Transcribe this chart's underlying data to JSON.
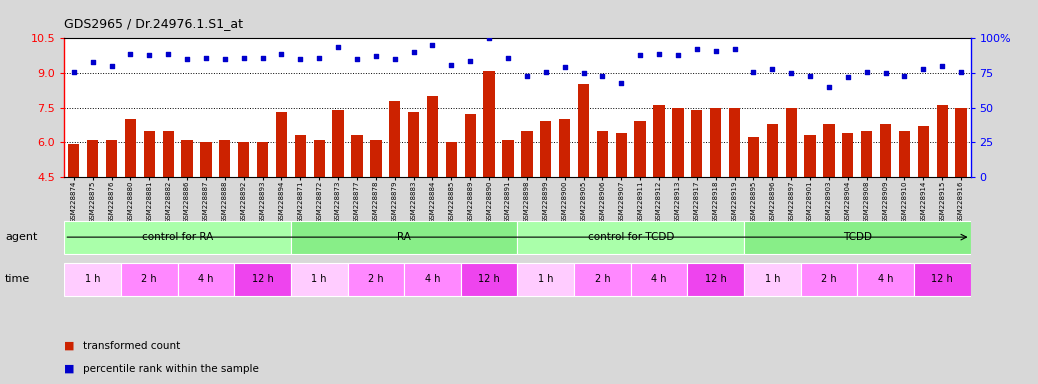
{
  "title": "GDS2965 / Dr.24976.1.S1_at",
  "samples": [
    "GSM228874",
    "GSM228875",
    "GSM228876",
    "GSM228880",
    "GSM228881",
    "GSM228882",
    "GSM228886",
    "GSM228887",
    "GSM228888",
    "GSM228892",
    "GSM228893",
    "GSM228894",
    "GSM228871",
    "GSM228872",
    "GSM228873",
    "GSM228877",
    "GSM228878",
    "GSM228879",
    "GSM228883",
    "GSM228884",
    "GSM228885",
    "GSM228889",
    "GSM228890",
    "GSM228891",
    "GSM228898",
    "GSM228899",
    "GSM228900",
    "GSM228905",
    "GSM228906",
    "GSM228907",
    "GSM228911",
    "GSM228912",
    "GSM228913",
    "GSM228917",
    "GSM228918",
    "GSM228919",
    "GSM228895",
    "GSM228896",
    "GSM228897",
    "GSM228901",
    "GSM228903",
    "GSM228904",
    "GSM228908",
    "GSM228909",
    "GSM228910",
    "GSM228914",
    "GSM228915",
    "GSM228916"
  ],
  "bar_values": [
    5.9,
    6.1,
    6.1,
    7.0,
    6.5,
    6.5,
    6.1,
    6.0,
    6.1,
    6.0,
    6.0,
    7.3,
    6.3,
    6.1,
    7.4,
    6.3,
    6.1,
    7.8,
    7.3,
    8.0,
    6.0,
    7.2,
    9.1,
    6.1,
    6.5,
    6.9,
    7.0,
    8.5,
    6.5,
    6.4,
    6.9,
    7.6,
    7.5,
    7.4,
    7.5,
    7.5,
    6.2,
    6.8,
    7.5,
    6.3,
    6.8,
    6.4,
    6.5,
    6.8,
    6.5,
    6.7,
    7.6,
    7.5
  ],
  "dot_values": [
    76,
    83,
    80,
    89,
    88,
    89,
    85,
    86,
    85,
    86,
    86,
    89,
    85,
    86,
    94,
    85,
    87,
    85,
    90,
    95,
    81,
    84,
    100,
    86,
    73,
    76,
    79,
    75,
    73,
    68,
    88,
    89,
    88,
    92,
    91,
    92,
    76,
    78,
    75,
    73,
    65,
    72,
    76,
    75,
    73,
    78,
    80,
    76
  ],
  "agent_groups": [
    {
      "label": "control for RA",
      "start": 0,
      "end": 12,
      "color": "#AAFFAA"
    },
    {
      "label": "RA",
      "start": 12,
      "end": 24,
      "color": "#88EE88"
    },
    {
      "label": "control for TCDD",
      "start": 24,
      "end": 36,
      "color": "#AAFFAA"
    },
    {
      "label": "TCDD",
      "start": 36,
      "end": 48,
      "color": "#88EE88"
    }
  ],
  "time_groups": [
    {
      "label": "1 h",
      "start": 0,
      "end": 3,
      "color": "#FFCCFF"
    },
    {
      "label": "2 h",
      "start": 3,
      "end": 6,
      "color": "#FF88FF"
    },
    {
      "label": "4 h",
      "start": 6,
      "end": 9,
      "color": "#FF88FF"
    },
    {
      "label": "12 h",
      "start": 9,
      "end": 12,
      "color": "#EE44EE"
    },
    {
      "label": "1 h",
      "start": 12,
      "end": 15,
      "color": "#FFCCFF"
    },
    {
      "label": "2 h",
      "start": 15,
      "end": 18,
      "color": "#FF88FF"
    },
    {
      "label": "4 h",
      "start": 18,
      "end": 21,
      "color": "#FF88FF"
    },
    {
      "label": "12 h",
      "start": 21,
      "end": 24,
      "color": "#EE44EE"
    },
    {
      "label": "1 h",
      "start": 24,
      "end": 27,
      "color": "#FFCCFF"
    },
    {
      "label": "2 h",
      "start": 27,
      "end": 30,
      "color": "#FF88FF"
    },
    {
      "label": "4 h",
      "start": 30,
      "end": 33,
      "color": "#FF88FF"
    },
    {
      "label": "12 h",
      "start": 33,
      "end": 36,
      "color": "#EE44EE"
    },
    {
      "label": "1 h",
      "start": 36,
      "end": 39,
      "color": "#FFCCFF"
    },
    {
      "label": "2 h",
      "start": 39,
      "end": 42,
      "color": "#FF88FF"
    },
    {
      "label": "4 h",
      "start": 42,
      "end": 45,
      "color": "#FF88FF"
    },
    {
      "label": "12 h",
      "start": 45,
      "end": 48,
      "color": "#EE44EE"
    }
  ],
  "ylim_left": [
    4.5,
    10.5
  ],
  "ylim_right": [
    0,
    100
  ],
  "yticks_left": [
    4.5,
    6.0,
    7.5,
    9.0,
    10.5
  ],
  "yticks_right": [
    0,
    25,
    50,
    75,
    100
  ],
  "bar_color": "#CC2200",
  "dot_color": "#0000CC",
  "background_color": "#D8D8D8",
  "plot_bg_color": "#FFFFFF",
  "agent_label": "agent",
  "time_label": "time",
  "legend_bar": "transformed count",
  "legend_dot": "percentile rank within the sample",
  "bar_bottom": 4.5
}
